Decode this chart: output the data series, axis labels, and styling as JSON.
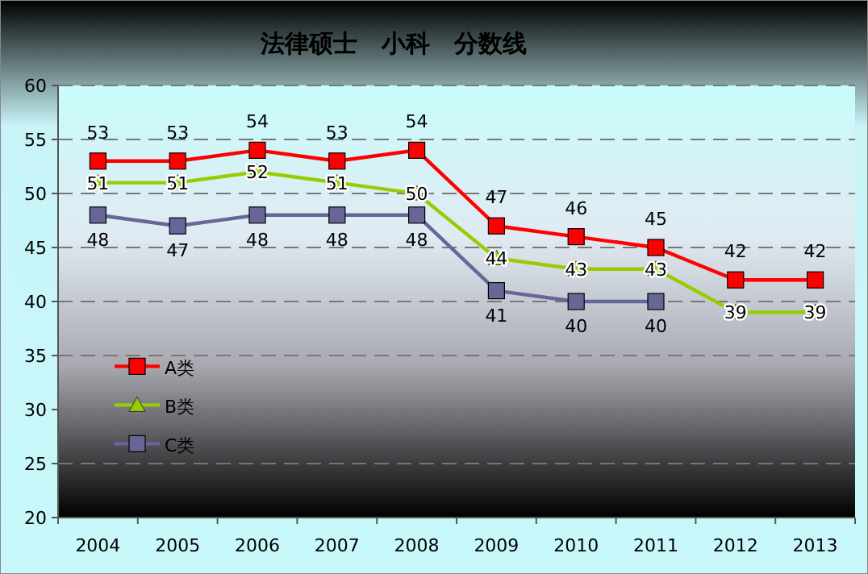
{
  "chart_data": {
    "type": "line",
    "title": "法律硕士　小科　分数线",
    "categories": [
      "2004",
      "2005",
      "2006",
      "2007",
      "2008",
      "2009",
      "2010",
      "2011",
      "2012",
      "2013"
    ],
    "series": [
      {
        "name": "A类",
        "color": "#ff0000",
        "marker": "square",
        "values": [
          53,
          53,
          54,
          53,
          54,
          47,
          46,
          45,
          42,
          42
        ]
      },
      {
        "name": "B类",
        "color": "#99cc00",
        "marker": "triangle",
        "values": [
          51,
          51,
          52,
          51,
          50,
          44,
          43,
          43,
          39,
          39
        ]
      },
      {
        "name": "C类",
        "color": "#666699",
        "marker": "square",
        "values": [
          48,
          47,
          48,
          48,
          48,
          41,
          40,
          40,
          null,
          null
        ]
      }
    ],
    "ylim": [
      20,
      60
    ],
    "yticks": [
      20,
      25,
      30,
      35,
      40,
      45,
      50,
      55,
      60
    ],
    "grid": "y",
    "legend": "bottom left",
    "data_labels": true,
    "line_style": "solid"
  }
}
